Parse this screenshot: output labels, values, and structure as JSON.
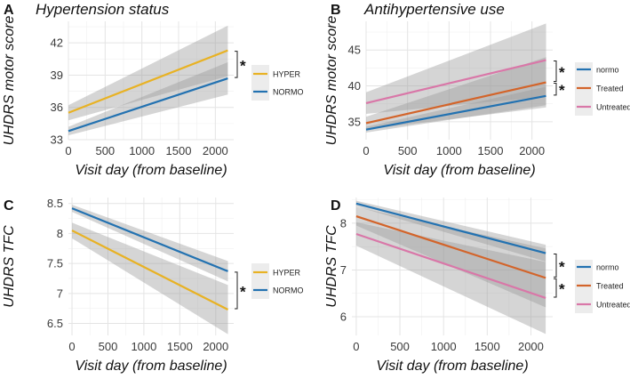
{
  "chart_data": [
    {
      "type": "line",
      "label": "A",
      "title": "Hypertension status",
      "xlabel": "Visit day (from baseline)",
      "ylabel": "UHDRS motor score",
      "xlim": [
        0,
        2250
      ],
      "ylim": [
        33,
        44
      ],
      "xticks": [
        0,
        500,
        1000,
        1500,
        2000
      ],
      "yticks": [
        33,
        36,
        39,
        42
      ],
      "series": [
        {
          "name": "HYPER",
          "color": "#E8B224",
          "x": [
            0,
            2170
          ],
          "y": [
            35.5,
            41.3
          ],
          "lower": [
            34.8,
            38.9
          ],
          "upper": [
            36.2,
            43.6
          ]
        },
        {
          "name": "NORMO",
          "color": "#2372B1",
          "x": [
            0,
            2170
          ],
          "y": [
            33.8,
            38.7
          ],
          "lower": [
            33.4,
            37.2
          ],
          "upper": [
            34.2,
            40.2
          ]
        }
      ],
      "significance": [
        {
          "label": "*",
          "between": [
            "HYPER",
            "NORMO"
          ]
        }
      ]
    },
    {
      "type": "line",
      "label": "B",
      "title": "Antihypertensive use",
      "xlabel": "Visit day (from baseline)",
      "ylabel": "UHDRS motor score",
      "xlim": [
        0,
        2250
      ],
      "ylim": [
        32.5,
        49
      ],
      "xticks": [
        0,
        500,
        1000,
        1500,
        2000
      ],
      "yticks": [
        35,
        40,
        45
      ],
      "series": [
        {
          "name": "normo",
          "color": "#2372B1",
          "x": [
            0,
            2170
          ],
          "y": [
            33.9,
            38.6
          ],
          "lower": [
            33.5,
            37.3
          ],
          "upper": [
            34.3,
            39.9
          ]
        },
        {
          "name": "Treated",
          "color": "#D3642A",
          "x": [
            0,
            2170
          ],
          "y": [
            34.8,
            40.5
          ],
          "lower": [
            33.9,
            37.0
          ],
          "upper": [
            35.7,
            44.0
          ]
        },
        {
          "name": "Untreated",
          "color": "#D977A8",
          "x": [
            0,
            2170
          ],
          "y": [
            37.6,
            43.6
          ],
          "lower": [
            36.1,
            38.5
          ],
          "upper": [
            39.1,
            48.7
          ]
        }
      ],
      "significance": [
        {
          "label": "*",
          "between": [
            "Untreated",
            "Treated"
          ]
        },
        {
          "label": "*",
          "between": [
            "Treated",
            "normo"
          ]
        }
      ]
    },
    {
      "type": "line",
      "label": "C",
      "title": "",
      "xlabel": "Visit day (from baseline)",
      "ylabel": "UHDRS TFC",
      "xlim": [
        -50,
        2250
      ],
      "ylim": [
        6.3,
        8.6
      ],
      "xticks": [
        0,
        500,
        1000,
        1500,
        2000
      ],
      "yticks": [
        6.5,
        7.0,
        7.5,
        8.0,
        8.5
      ],
      "series": [
        {
          "name": "HYPER",
          "color": "#E8B224",
          "x": [
            0,
            2170
          ],
          "y": [
            8.05,
            6.73
          ],
          "lower": [
            7.92,
            6.32
          ],
          "upper": [
            8.18,
            7.14
          ]
        },
        {
          "name": "NORMO",
          "color": "#2372B1",
          "x": [
            0,
            2170
          ],
          "y": [
            8.42,
            7.37
          ],
          "lower": [
            8.36,
            7.2
          ],
          "upper": [
            8.48,
            7.54
          ]
        }
      ],
      "significance": [
        {
          "label": "*",
          "between": [
            "NORMO",
            "HYPER"
          ]
        }
      ]
    },
    {
      "type": "line",
      "label": "D",
      "title": "",
      "xlabel": "Visit day (from baseline)",
      "ylabel": "UHDRS TFC",
      "xlim": [
        -50,
        2250
      ],
      "ylim": [
        5.6,
        8.55
      ],
      "xticks": [
        0,
        500,
        1000,
        1500,
        2000
      ],
      "yticks": [
        6,
        7,
        8
      ],
      "series": [
        {
          "name": "normo",
          "color": "#2372B1",
          "x": [
            0,
            2170
          ],
          "y": [
            8.42,
            7.36
          ],
          "lower": [
            8.36,
            7.18
          ],
          "upper": [
            8.48,
            7.54
          ]
        },
        {
          "name": "Treated",
          "color": "#D3642A",
          "x": [
            0,
            2170
          ],
          "y": [
            8.15,
            6.83
          ],
          "lower": [
            7.95,
            6.2
          ],
          "upper": [
            8.35,
            7.46
          ]
        },
        {
          "name": "Untreated",
          "color": "#D977A8",
          "x": [
            0,
            2170
          ],
          "y": [
            7.77,
            6.4
          ],
          "lower": [
            7.52,
            5.63
          ],
          "upper": [
            8.02,
            7.17
          ]
        }
      ],
      "significance": [
        {
          "label": "*",
          "between": [
            "normo",
            "Treated"
          ]
        },
        {
          "label": "*",
          "between": [
            "Treated",
            "Untreated"
          ]
        }
      ]
    }
  ]
}
